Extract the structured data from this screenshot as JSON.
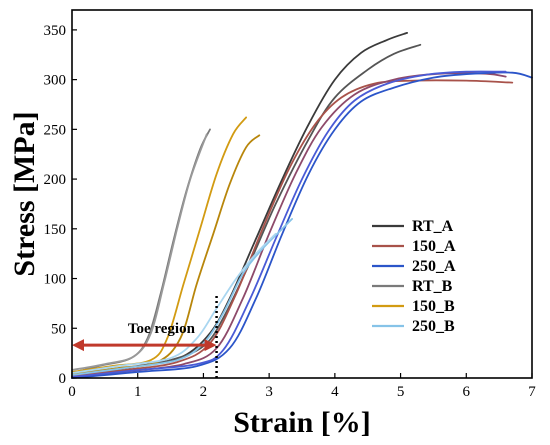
{
  "chart_data": {
    "type": "line",
    "xlabel": "Strain [%]",
    "ylabel": "Stress [MPa]",
    "xlim": [
      0,
      7
    ],
    "ylim": [
      0,
      370
    ],
    "x_ticks": [
      0,
      1,
      2,
      3,
      4,
      5,
      6,
      7
    ],
    "y_ticks": [
      0,
      50,
      100,
      150,
      200,
      250,
      300,
      350
    ],
    "grid": false,
    "legend_position": "right",
    "annotation": {
      "text": "Toe region",
      "x_start": 0,
      "x_end": 2.2,
      "y": 33,
      "color": "#c0392b"
    },
    "toe_boundary": {
      "x": 2.2,
      "y_max": 85
    },
    "series": [
      {
        "name": "RT_A",
        "color": "#3a3a3a",
        "points": [
          [
            0,
            2
          ],
          [
            0.6,
            8
          ],
          [
            1.2,
            14
          ],
          [
            1.7,
            22
          ],
          [
            2.1,
            45
          ],
          [
            2.4,
            80
          ],
          [
            2.8,
            140
          ],
          [
            3.2,
            200
          ],
          [
            3.6,
            255
          ],
          [
            4.0,
            300
          ],
          [
            4.4,
            327
          ],
          [
            4.8,
            340
          ],
          [
            5.1,
            347
          ]
        ]
      },
      {
        "name": "RT_A",
        "color": "#555555",
        "points": [
          [
            0,
            1
          ],
          [
            0.8,
            10
          ],
          [
            1.5,
            18
          ],
          [
            2.0,
            32
          ],
          [
            2.3,
            60
          ],
          [
            2.7,
            115
          ],
          [
            3.1,
            175
          ],
          [
            3.6,
            240
          ],
          [
            4.0,
            282
          ],
          [
            4.5,
            310
          ],
          [
            4.9,
            326
          ],
          [
            5.3,
            335
          ]
        ]
      },
      {
        "name": "150_A",
        "color": "#a8524a",
        "points": [
          [
            0,
            2
          ],
          [
            0.8,
            8
          ],
          [
            1.6,
            16
          ],
          [
            2.1,
            35
          ],
          [
            2.5,
            85
          ],
          [
            2.9,
            150
          ],
          [
            3.3,
            210
          ],
          [
            3.7,
            255
          ],
          [
            4.1,
            282
          ],
          [
            4.6,
            296
          ],
          [
            5.2,
            299
          ],
          [
            6.0,
            299
          ],
          [
            6.7,
            297
          ]
        ]
      },
      {
        "name": "150_A",
        "color": "#8e4a6a",
        "points": [
          [
            0,
            1
          ],
          [
            0.9,
            7
          ],
          [
            1.7,
            14
          ],
          [
            2.2,
            30
          ],
          [
            2.6,
            80
          ],
          [
            3.0,
            145
          ],
          [
            3.4,
            205
          ],
          [
            3.8,
            252
          ],
          [
            4.3,
            285
          ],
          [
            4.9,
            300
          ],
          [
            5.6,
            306
          ],
          [
            6.3,
            306
          ],
          [
            6.6,
            303
          ]
        ]
      },
      {
        "name": "250_A",
        "color": "#2b55c9",
        "points": [
          [
            0,
            0
          ],
          [
            1.0,
            6
          ],
          [
            1.9,
            12
          ],
          [
            2.4,
            30
          ],
          [
            2.8,
            80
          ],
          [
            3.2,
            145
          ],
          [
            3.6,
            205
          ],
          [
            4.0,
            250
          ],
          [
            4.4,
            278
          ],
          [
            4.9,
            292
          ],
          [
            5.5,
            302
          ],
          [
            6.1,
            306
          ],
          [
            6.7,
            307
          ],
          [
            7.0,
            302
          ]
        ]
      },
      {
        "name": "250_A",
        "color": "#4a5bd6",
        "points": [
          [
            0,
            1
          ],
          [
            1.0,
            8
          ],
          [
            1.9,
            14
          ],
          [
            2.3,
            28
          ],
          [
            2.7,
            78
          ],
          [
            3.1,
            140
          ],
          [
            3.5,
            200
          ],
          [
            3.9,
            248
          ],
          [
            4.3,
            279
          ],
          [
            4.8,
            296
          ],
          [
            5.4,
            305
          ],
          [
            6.0,
            308
          ],
          [
            6.6,
            308
          ]
        ]
      },
      {
        "name": "RT_B",
        "color": "#7a7a7a",
        "points": [
          [
            0,
            5
          ],
          [
            0.4,
            12
          ],
          [
            0.9,
            20
          ],
          [
            1.15,
            40
          ],
          [
            1.35,
            85
          ],
          [
            1.55,
            140
          ],
          [
            1.75,
            190
          ],
          [
            1.95,
            230
          ],
          [
            2.1,
            250
          ]
        ]
      },
      {
        "name": "RT_B",
        "color": "#999999",
        "points": [
          [
            0,
            8
          ],
          [
            0.5,
            14
          ],
          [
            0.95,
            22
          ],
          [
            1.2,
            45
          ],
          [
            1.4,
            95
          ],
          [
            1.6,
            150
          ],
          [
            1.8,
            200
          ],
          [
            2.05,
            245
          ]
        ]
      },
      {
        "name": "150_B",
        "color": "#d29b12",
        "points": [
          [
            0,
            6
          ],
          [
            0.6,
            12
          ],
          [
            1.2,
            18
          ],
          [
            1.45,
            40
          ],
          [
            1.7,
            95
          ],
          [
            1.95,
            150
          ],
          [
            2.2,
            205
          ],
          [
            2.45,
            245
          ],
          [
            2.65,
            262
          ]
        ]
      },
      {
        "name": "150_B",
        "color": "#b8860b",
        "points": [
          [
            0,
            4
          ],
          [
            0.7,
            10
          ],
          [
            1.3,
            16
          ],
          [
            1.65,
            40
          ],
          [
            1.9,
            95
          ],
          [
            2.15,
            145
          ],
          [
            2.4,
            195
          ],
          [
            2.65,
            232
          ],
          [
            2.85,
            244
          ]
        ]
      },
      {
        "name": "250_B",
        "color": "#86c3e8",
        "points": [
          [
            0,
            3
          ],
          [
            0.8,
            10
          ],
          [
            1.6,
            18
          ],
          [
            2.0,
            35
          ],
          [
            2.3,
            65
          ],
          [
            2.6,
            105
          ],
          [
            2.9,
            130
          ],
          [
            3.2,
            150
          ],
          [
            3.35,
            160
          ]
        ]
      },
      {
        "name": "250_B",
        "color": "#a9d6f0",
        "points": [
          [
            0,
            5
          ],
          [
            0.7,
            12
          ],
          [
            1.5,
            20
          ],
          [
            1.9,
            40
          ],
          [
            2.2,
            70
          ],
          [
            2.5,
            100
          ],
          [
            2.8,
            125
          ],
          [
            3.1,
            145
          ]
        ]
      }
    ],
    "legend": [
      {
        "name": "RT_A",
        "color": "#3a3a3a"
      },
      {
        "name": "150_A",
        "color": "#a8524a"
      },
      {
        "name": "250_A",
        "color": "#2b55c9"
      },
      {
        "name": "RT_B",
        "color": "#7a7a7a"
      },
      {
        "name": "150_B",
        "color": "#d29b12"
      },
      {
        "name": "250_B",
        "color": "#86c3e8"
      }
    ]
  }
}
